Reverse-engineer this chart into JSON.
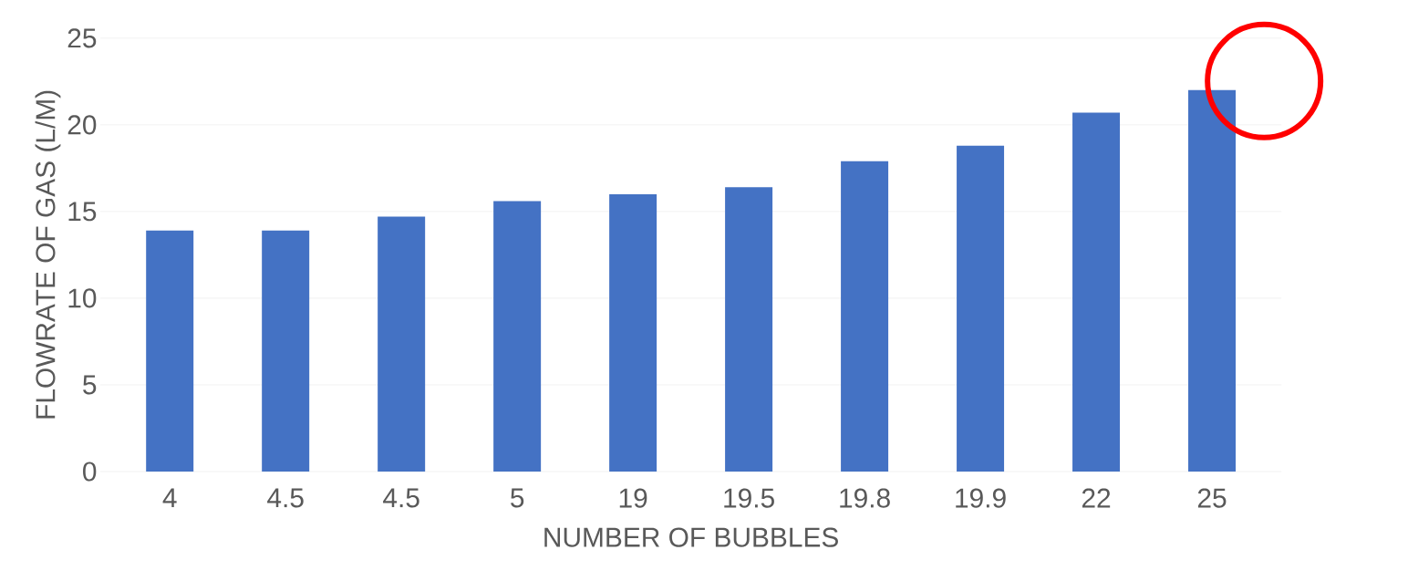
{
  "chart_data": {
    "type": "bar",
    "xlabel": "NUMBER OF BUBBLES",
    "ylabel": "FLOWRATE OF GAS (L/M)",
    "categories": [
      "4",
      "4.5",
      "4.5",
      "5",
      "19",
      "19.5",
      "19.8",
      "19.9",
      "22",
      "25"
    ],
    "values": [
      13.9,
      13.9,
      14.7,
      15.6,
      16.0,
      16.4,
      17.9,
      18.8,
      20.7,
      22.0
    ],
    "color": "#4472c4",
    "ylim": [
      0,
      25
    ],
    "yticks": [
      0,
      5,
      10,
      15,
      20,
      25
    ],
    "grid": "y"
  }
}
